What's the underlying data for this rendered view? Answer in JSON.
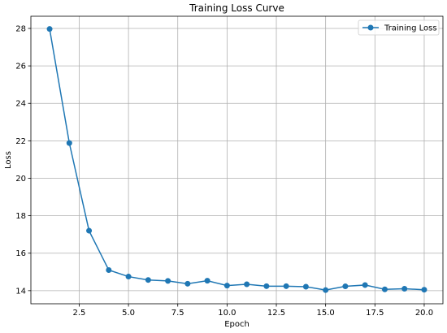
{
  "chart_data": {
    "type": "line",
    "title": "Training Loss Curve",
    "xlabel": "Epoch",
    "ylabel": "Loss",
    "xlim": [
      0.05,
      20.95
    ],
    "ylim": [
      13.3,
      28.65
    ],
    "xticks": [
      2.5,
      5.0,
      7.5,
      10.0,
      12.5,
      15.0,
      17.5,
      20.0
    ],
    "xtick_labels": [
      "2.5",
      "5.0",
      "7.5",
      "10.0",
      "12.5",
      "15.0",
      "17.5",
      "20.0"
    ],
    "yticks": [
      14,
      16,
      18,
      20,
      22,
      24,
      26,
      28
    ],
    "ytick_labels": [
      "14",
      "16",
      "18",
      "20",
      "22",
      "24",
      "26",
      "28"
    ],
    "grid": true,
    "legend_position": "top-right",
    "series": [
      {
        "name": "Training Loss",
        "color": "#1f77b4",
        "marker": "circle",
        "x": [
          1,
          2,
          3,
          4,
          5,
          6,
          7,
          8,
          9,
          10,
          11,
          12,
          13,
          14,
          15,
          16,
          17,
          18,
          19,
          20
        ],
        "y": [
          27.97,
          21.88,
          17.2,
          15.1,
          14.75,
          14.57,
          14.52,
          14.37,
          14.53,
          14.27,
          14.34,
          14.24,
          14.24,
          14.21,
          14.03,
          14.23,
          14.3,
          14.07,
          14.1,
          14.05
        ]
      }
    ]
  }
}
